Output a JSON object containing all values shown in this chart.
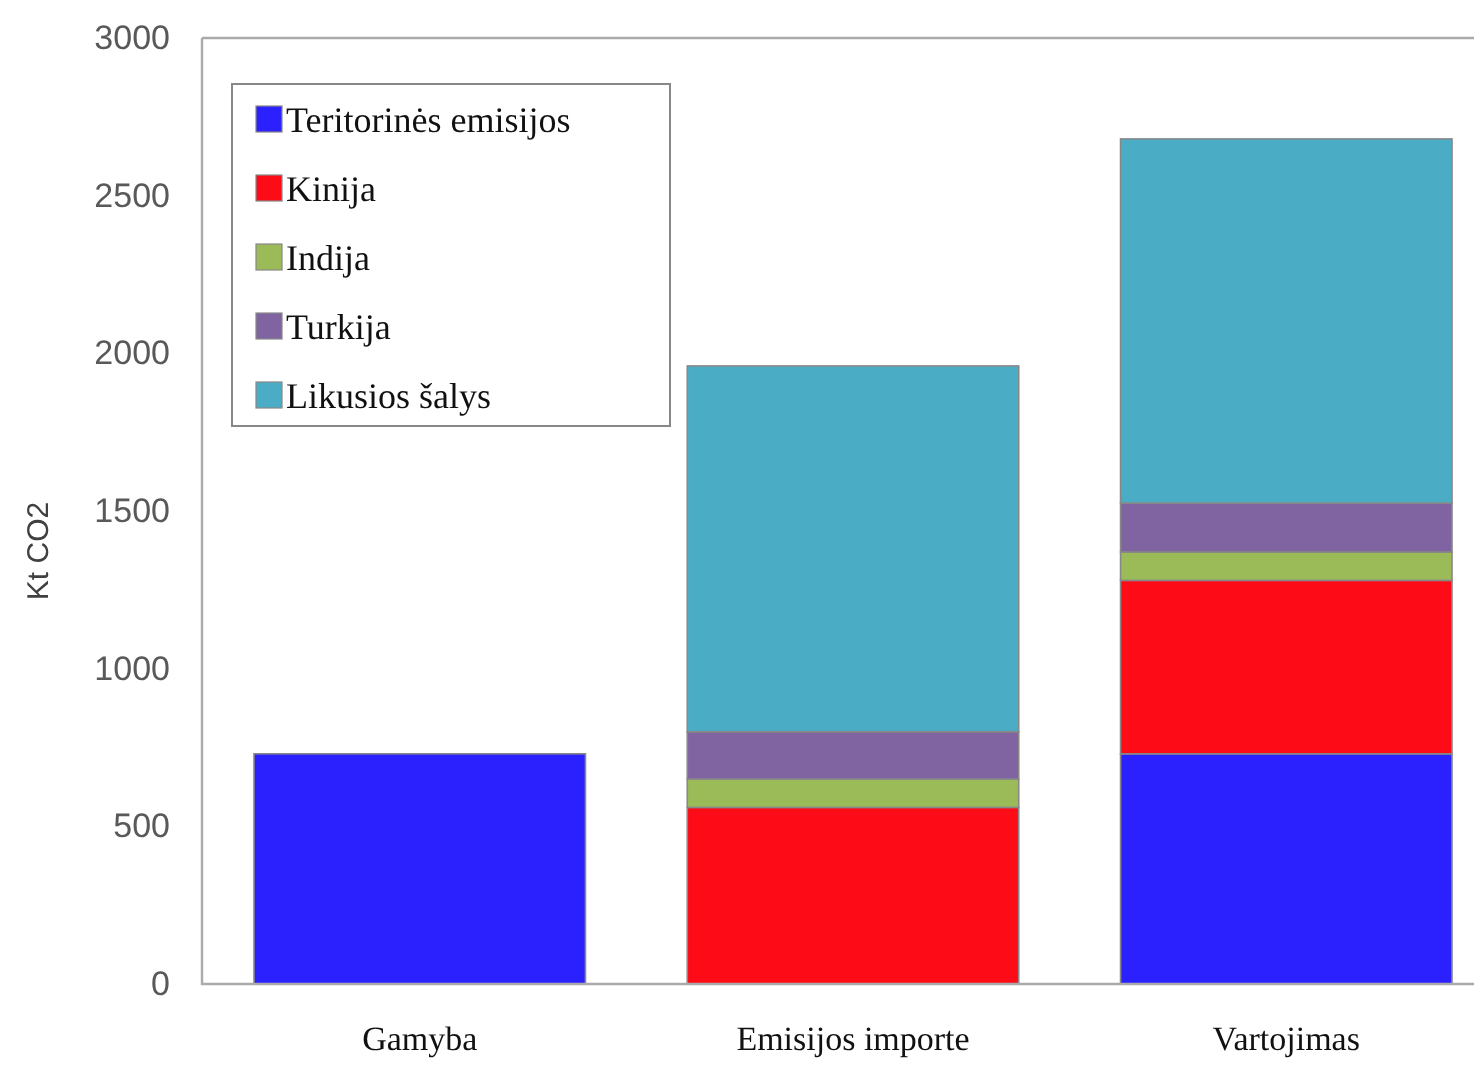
{
  "chart_data": {
    "type": "bar",
    "stacked": true,
    "ylabel": "Kt CO2",
    "categories": [
      "Gamyba",
      "Emisijos importe",
      "Vartojimas"
    ],
    "series": [
      {
        "name": "Teritorinės emisijos",
        "color": "#2b21fe",
        "values": [
          730,
          null,
          730
        ]
      },
      {
        "name": "Kinija",
        "color": "#fd0b17",
        "values": [
          null,
          560,
          550
        ]
      },
      {
        "name": "Indija",
        "color": "#9bbb59",
        "values": [
          null,
          90,
          90
        ]
      },
      {
        "name": "Turkija",
        "color": "#8064a2",
        "values": [
          null,
          150,
          155
        ]
      },
      {
        "name": "Likusios šalys",
        "color": "#4bacc6",
        "values": [
          null,
          1160,
          1155
        ]
      }
    ],
    "ylim": [
      0,
      3000
    ],
    "yticks": [
      0,
      500,
      1000,
      1500,
      2000,
      2500,
      3000
    ],
    "legend": "top left"
  }
}
